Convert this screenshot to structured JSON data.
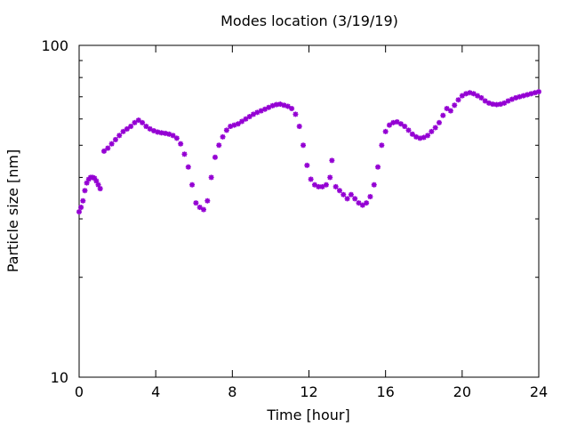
{
  "chart_data": {
    "type": "scatter",
    "title": "Modes location (3/19/19)",
    "xlabel": "Time [hour]",
    "ylabel": "Particle size [nm]",
    "xlim": [
      0,
      24
    ],
    "ylim": [
      10,
      100
    ],
    "yscale": "log",
    "grid": false,
    "x_ticks": [
      0,
      4,
      8,
      12,
      16,
      20,
      24
    ],
    "x_tick_labels": [
      "0",
      "4",
      "8",
      "12",
      "16",
      "20",
      "24"
    ],
    "y_ticks": [
      10,
      100
    ],
    "y_tick_labels": [
      "10",
      "100"
    ],
    "color": "#9400d3",
    "series": [
      {
        "x": [
          0.0,
          0.1,
          0.2,
          0.3,
          0.4,
          0.5,
          0.6,
          0.7,
          0.8,
          0.9,
          1.0,
          1.1,
          1.3,
          1.5,
          1.7,
          1.9,
          2.1,
          2.3,
          2.5,
          2.7,
          2.9,
          3.1,
          3.3,
          3.5,
          3.7,
          3.9,
          4.1,
          4.3,
          4.5,
          4.7,
          4.9,
          5.1,
          5.3,
          5.5,
          5.7,
          5.9,
          6.1,
          6.3,
          6.5,
          6.7,
          6.9,
          7.1,
          7.3,
          7.5,
          7.7,
          7.9,
          8.1,
          8.3,
          8.5,
          8.7,
          8.9,
          9.1,
          9.3,
          9.5,
          9.7,
          9.9,
          10.1,
          10.3,
          10.5,
          10.7,
          10.9,
          11.1,
          11.3,
          11.5,
          11.7,
          11.9,
          12.1,
          12.3,
          12.5,
          12.7,
          12.9,
          13.1,
          13.2,
          13.4,
          13.6,
          13.8,
          14.0,
          14.2,
          14.4,
          14.6,
          14.8,
          15.0,
          15.2,
          15.4,
          15.6,
          15.8,
          16.0,
          16.2,
          16.4,
          16.6,
          16.8,
          17.0,
          17.2,
          17.4,
          17.6,
          17.8,
          18.0,
          18.2,
          18.4,
          18.6,
          18.8,
          19.0,
          19.2,
          19.4,
          19.6,
          19.8,
          20.0,
          20.2,
          20.4,
          20.6,
          20.8,
          21.0,
          21.2,
          21.4,
          21.6,
          21.8,
          22.0,
          22.2,
          22.4,
          22.6,
          22.8,
          23.0,
          23.2,
          23.4,
          23.6,
          23.8,
          24.0
        ],
        "y": [
          31.5,
          32.5,
          34.0,
          36.5,
          38.5,
          39.5,
          40.0,
          40.0,
          39.8,
          39.0,
          38.0,
          37.0,
          48.0,
          49.0,
          50.5,
          52.0,
          53.5,
          55.0,
          56.0,
          57.0,
          58.5,
          59.5,
          58.5,
          57.0,
          56.0,
          55.3,
          54.8,
          54.5,
          54.3,
          54.0,
          53.5,
          52.5,
          50.5,
          47.0,
          43.0,
          38.0,
          33.5,
          32.5,
          32.0,
          34.0,
          40.0,
          46.0,
          50.0,
          53.0,
          55.5,
          57.0,
          57.5,
          58.0,
          59.0,
          60.0,
          61.0,
          62.0,
          62.8,
          63.5,
          64.2,
          65.0,
          65.8,
          66.3,
          66.5,
          66.0,
          65.5,
          64.5,
          62.0,
          57.0,
          50.0,
          43.5,
          39.5,
          38.0,
          37.5,
          37.5,
          38.0,
          40.0,
          45.0,
          37.5,
          36.5,
          35.5,
          34.5,
          35.5,
          34.5,
          33.5,
          33.0,
          33.5,
          35.0,
          38.0,
          43.0,
          50.0,
          55.0,
          57.5,
          58.5,
          58.8,
          58.0,
          57.0,
          55.5,
          54.0,
          53.0,
          52.5,
          52.8,
          53.5,
          55.0,
          56.5,
          58.5,
          61.5,
          64.5,
          63.5,
          66.0,
          68.5,
          70.5,
          71.5,
          72.0,
          71.5,
          70.5,
          69.5,
          68.0,
          67.0,
          66.5,
          66.3,
          66.5,
          67.0,
          68.0,
          68.8,
          69.5,
          70.0,
          70.5,
          71.0,
          71.5,
          72.0,
          72.5
        ]
      }
    ]
  }
}
